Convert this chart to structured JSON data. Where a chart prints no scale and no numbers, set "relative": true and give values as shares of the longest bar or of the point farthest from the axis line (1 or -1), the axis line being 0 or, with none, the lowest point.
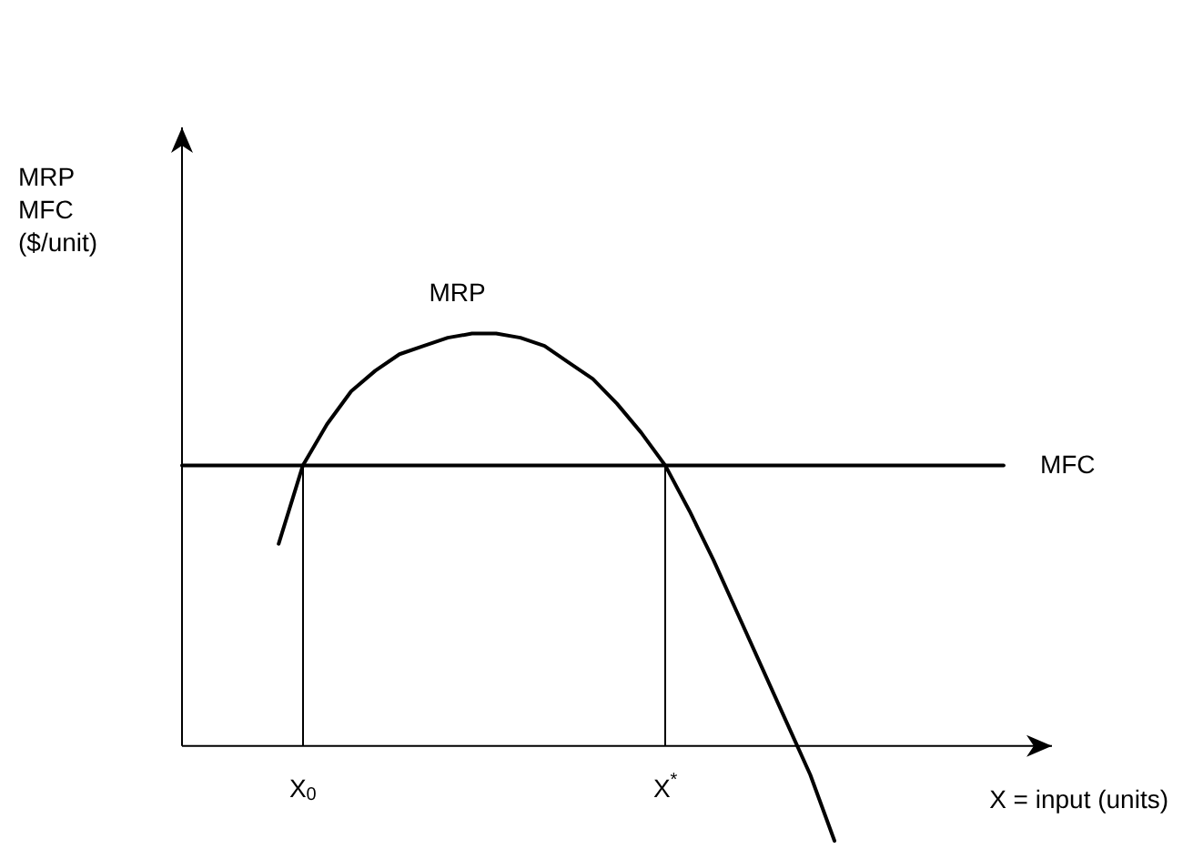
{
  "chart_data": {
    "type": "line",
    "relative": true,
    "xlabel": "X = input (units)",
    "ylabel": "MRP\nMFC\n($/unit)",
    "categories": [
      null,
      null,
      null,
      null,
      null,
      "X$_{0}$",
      null,
      null,
      null,
      null,
      null,
      null,
      null,
      null,
      null,
      null,
      null,
      null,
      null,
      null,
      "X$^{*}$",
      null,
      null,
      null,
      null,
      null,
      null,
      null,
      null,
      null,
      null,
      null,
      null,
      null,
      null,
      null,
      null
    ],
    "series": [
      {
        "color": "#000000",
        "values": [
          null,
          null,
          null,
          null,
          0.49,
          0.68,
          0.78,
          0.86,
          0.91,
          0.95,
          0.97,
          0.99,
          1,
          1,
          0.99,
          0.97,
          0.93,
          0.89,
          0.83,
          0.76,
          0.68,
          0.57,
          0.45,
          0.32,
          0.19,
          0.06,
          -0.07,
          -0.23,
          null,
          null,
          null,
          null,
          null,
          null,
          null,
          null,
          null
        ]
      },
      {
        "color": "#000000",
        "values": [
          0.68,
          0.68,
          0.68,
          0.68,
          0.68,
          0.68,
          0.68,
          0.68,
          0.68,
          0.68,
          0.68,
          0.68,
          0.68,
          0.68,
          0.68,
          0.68,
          0.68,
          0.68,
          0.68,
          0.68,
          0.68,
          0.68,
          0.68,
          0.68,
          0.68,
          0.68,
          0.68,
          0.68,
          0.68,
          0.68,
          0.68,
          0.68,
          0.68,
          0.68,
          0.68,
          null,
          null
        ]
      }
    ],
    "ref_lines": [
      {
        "axis": "x",
        "value": "X$_{0}$"
      },
      {
        "axis": "x",
        "value": "X$^{*}$"
      }
    ],
    "annotations": [
      "MRP",
      "MFC"
    ],
    "marker": "none",
    "line_style": "solid"
  }
}
